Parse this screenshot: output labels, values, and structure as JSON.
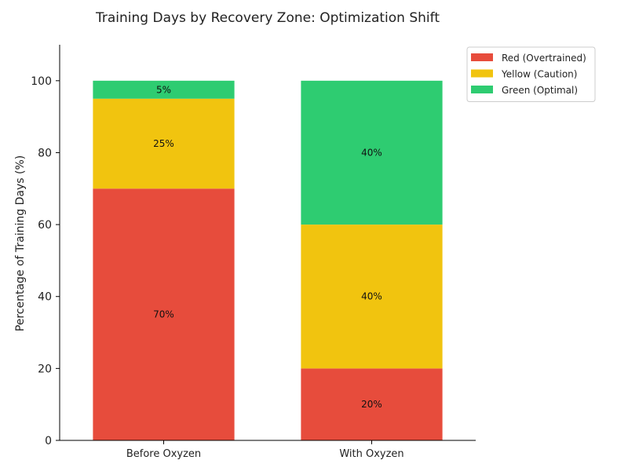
{
  "chart_data": {
    "type": "bar",
    "stacked": true,
    "title": "Training Days by Recovery Zone: Optimization Shift",
    "xlabel": "",
    "ylabel": "Percentage of Training Days (%)",
    "ylim": [
      0,
      110
    ],
    "yticks": [
      0,
      20,
      40,
      60,
      80,
      100
    ],
    "grid": false,
    "legend_position": "top-right",
    "categories": [
      "Before Oxyzen",
      "With Oxyzen"
    ],
    "series": [
      {
        "name": "Red (Overtrained)",
        "color": "#e74c3c",
        "values": [
          70,
          20
        ],
        "labels": [
          "70%",
          "20%"
        ]
      },
      {
        "name": "Yellow (Caution)",
        "color": "#f1c40f",
        "values": [
          25,
          40
        ],
        "labels": [
          "25%",
          "40%"
        ]
      },
      {
        "name": "Green (Optimal)",
        "color": "#2ecc71",
        "values": [
          5,
          40
        ],
        "labels": [
          "5%",
          "40%"
        ]
      }
    ]
  }
}
